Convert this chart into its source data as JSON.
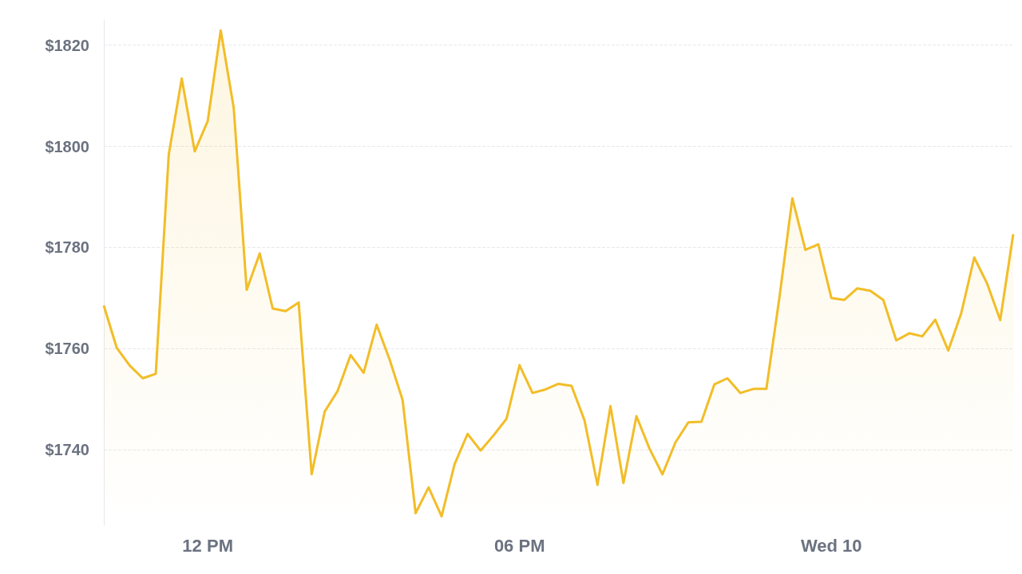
{
  "chart_data": {
    "type": "area",
    "color": "#f2bd27",
    "categories": [
      null,
      null,
      null,
      null,
      null,
      null,
      null,
      null,
      "12 PM",
      null,
      null,
      null,
      null,
      null,
      null,
      null,
      null,
      null,
      null,
      null,
      null,
      null,
      null,
      null,
      null,
      null,
      null,
      null,
      null,
      null,
      null,
      null,
      "06 PM",
      null,
      null,
      null,
      null,
      null,
      null,
      null,
      null,
      null,
      null,
      null,
      null,
      null,
      null,
      null,
      null,
      null,
      null,
      null,
      null,
      null,
      null,
      null,
      "Wed 10",
      null,
      null,
      null,
      null,
      null,
      null,
      null,
      null,
      null,
      null,
      null,
      null,
      null,
      null
    ],
    "values": [
      1768.5,
      1760.1,
      1756.6,
      1754.1,
      1755.0,
      1798.4,
      1813.4,
      1799.0,
      1805.0,
      1822.9,
      1807.6,
      1771.6,
      1778.8,
      1767.9,
      1767.4,
      1769.1,
      1735.1,
      1747.5,
      1751.6,
      1758.7,
      1755.2,
      1764.7,
      1757.8,
      1749.8,
      1727.4,
      1732.5,
      1726.8,
      1737.1,
      1743.1,
      1739.8,
      1742.8,
      1746.1,
      1756.7,
      1751.2,
      1751.9,
      1753.0,
      1752.6,
      1745.8,
      1733.0,
      1748.6,
      1733.4,
      1746.6,
      1740.2,
      1735.1,
      1741.4,
      1745.4,
      1745.5,
      1752.9,
      1754.1,
      1751.2,
      1752.0,
      1752.0,
      1770.0,
      1789.7,
      1779.5,
      1780.6,
      1770.0,
      1769.6,
      1771.9,
      1771.4,
      1769.6,
      1761.6,
      1763.0,
      1762.4,
      1765.7,
      1759.6,
      1767.0,
      1778.0,
      1772.8,
      1765.6,
      1782.6
    ],
    "ylim": [
      1725,
      1825
    ],
    "yticks": [
      {
        "value": 1740,
        "label": "$1740"
      },
      {
        "value": 1760,
        "label": "$1760"
      },
      {
        "value": 1780,
        "label": "$1780"
      },
      {
        "value": 1800,
        "label": "$1800"
      },
      {
        "value": 1820,
        "label": "$1820"
      }
    ],
    "grid": "y",
    "marker": "none",
    "line_style": "solid"
  }
}
